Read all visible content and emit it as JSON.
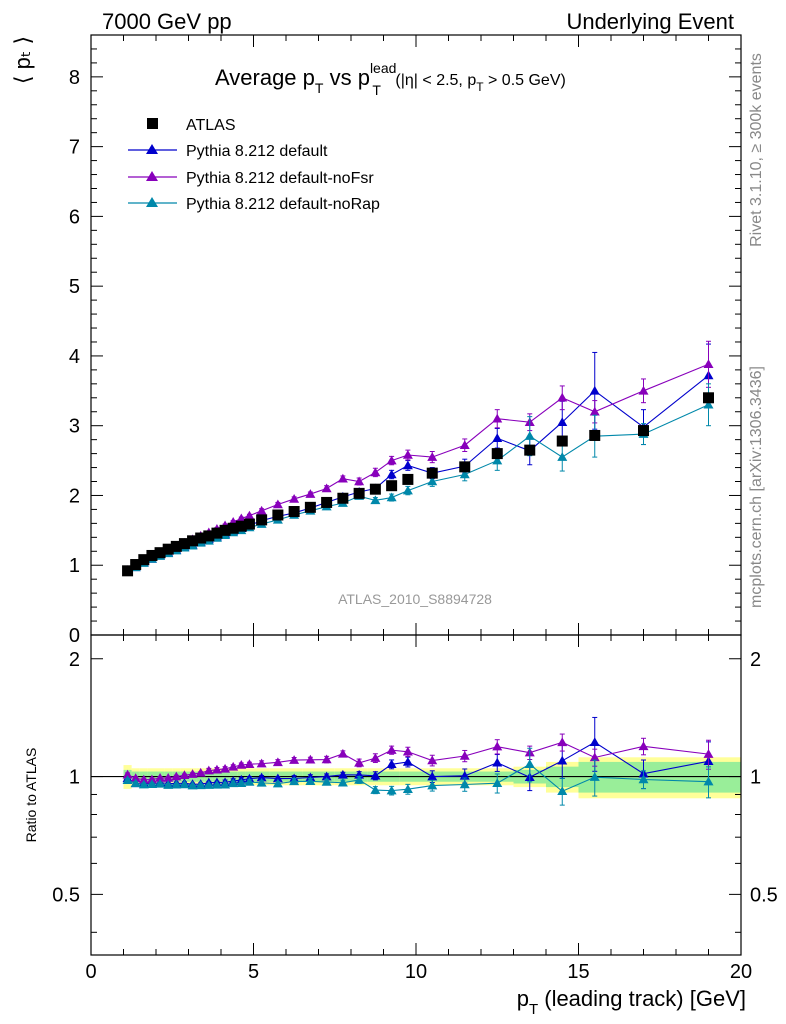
{
  "header": {
    "left": "7000 GeV pp",
    "right": "Underlying Event"
  },
  "side_labels": {
    "rivet": "Rivet 3.1.10, ≥ 300k events",
    "mcplots": "mcplots.cern.ch [arXiv:1306.3436]"
  },
  "chart_data": {
    "type": "scatter",
    "title": {
      "p1": "Average p",
      "sub_t": "T",
      "p2": " vs p",
      "sup_lead": "lead",
      "sub_t2": "T",
      "cuts_a": " (|η| < 2.5, p",
      "cuts_sub": "T",
      "cuts_b": " > 0.5 GeV)"
    },
    "watermark": "ATLAS_2010_S8894728",
    "ylabel_main": "⟨ pₜ ⟩",
    "ylabel_ratio": "Ratio to ATLAS",
    "xlabel": {
      "p": "p",
      "sub": "T",
      "rest": " (leading track) [GeV]"
    },
    "xlim": [
      0,
      20
    ],
    "ylim_main": [
      0,
      8.6
    ],
    "ylim_ratio": [
      0.35,
      2.3
    ],
    "xticks": [
      0,
      5,
      10,
      15,
      20
    ],
    "yticks_main": [
      0,
      1,
      2,
      3,
      4,
      5,
      6,
      7,
      8
    ],
    "yticks_ratio": [
      {
        "value": 0.5,
        "label": "0.5"
      },
      {
        "value": 1,
        "label": "1"
      },
      {
        "value": 2,
        "label": "2"
      }
    ],
    "x": [
      1.125,
      1.375,
      1.625,
      1.875,
      2.125,
      2.375,
      2.625,
      2.875,
      3.125,
      3.375,
      3.625,
      3.875,
      4.125,
      4.375,
      4.625,
      4.875,
      5.25,
      5.75,
      6.25,
      6.75,
      7.25,
      7.75,
      8.25,
      8.75,
      9.25,
      9.75,
      10.5,
      11.5,
      12.5,
      13.5,
      14.5,
      15.5,
      17.0,
      19.0
    ],
    "band_edges": [
      1.0,
      1.25,
      1.5,
      1.75,
      2.0,
      2.25,
      2.5,
      2.75,
      3.0,
      3.25,
      3.5,
      3.75,
      4.0,
      4.25,
      4.5,
      4.75,
      5.0,
      5.5,
      6.0,
      6.5,
      7.0,
      7.5,
      8.0,
      8.5,
      9.0,
      9.5,
      10.0,
      11.0,
      12.0,
      13.0,
      14.0,
      15.0,
      16.0,
      18.0,
      20.0
    ],
    "data": {
      "name": "ATLAS",
      "values": [
        0.92,
        1.01,
        1.08,
        1.14,
        1.18,
        1.23,
        1.27,
        1.31,
        1.35,
        1.39,
        1.42,
        1.46,
        1.5,
        1.53,
        1.56,
        1.59,
        1.65,
        1.72,
        1.77,
        1.83,
        1.9,
        1.96,
        2.03,
        2.09,
        2.14,
        2.23,
        2.32,
        2.41,
        2.6,
        2.65,
        2.78,
        2.86,
        2.93,
        3.4
      ],
      "stat_band": [
        0.04,
        0.03,
        0.03,
        0.03,
        0.03,
        0.03,
        0.03,
        0.03,
        0.03,
        0.03,
        0.03,
        0.03,
        0.03,
        0.03,
        0.03,
        0.03,
        0.03,
        0.03,
        0.03,
        0.03,
        0.03,
        0.03,
        0.03,
        0.03,
        0.03,
        0.03,
        0.03,
        0.03,
        0.03,
        0.04,
        0.06,
        0.09,
        0.09,
        0.09
      ],
      "tot_band": [
        0.07,
        0.05,
        0.05,
        0.05,
        0.05,
        0.05,
        0.05,
        0.05,
        0.05,
        0.05,
        0.05,
        0.05,
        0.05,
        0.05,
        0.05,
        0.05,
        0.05,
        0.05,
        0.05,
        0.05,
        0.05,
        0.05,
        0.05,
        0.05,
        0.05,
        0.05,
        0.05,
        0.05,
        0.05,
        0.06,
        0.09,
        0.12,
        0.12,
        0.12
      ]
    },
    "series": [
      {
        "name": "Pythia 8.212 default",
        "color": "#0000cc",
        "values": [
          0.91,
          0.97,
          1.04,
          1.09,
          1.14,
          1.18,
          1.22,
          1.26,
          1.29,
          1.33,
          1.37,
          1.41,
          1.45,
          1.49,
          1.53,
          1.57,
          1.64,
          1.7,
          1.75,
          1.82,
          1.9,
          1.98,
          2.05,
          2.1,
          2.3,
          2.43,
          2.32,
          2.42,
          2.82,
          2.64,
          3.05,
          3.5,
          2.98,
          3.72
        ],
        "errors": [
          0.01,
          0.01,
          0.01,
          0.01,
          0.01,
          0.01,
          0.01,
          0.01,
          0.01,
          0.01,
          0.01,
          0.01,
          0.02,
          0.02,
          0.02,
          0.02,
          0.02,
          0.02,
          0.03,
          0.03,
          0.03,
          0.03,
          0.04,
          0.05,
          0.06,
          0.07,
          0.08,
          0.1,
          0.14,
          0.2,
          0.3,
          0.55,
          0.25,
          0.45
        ]
      },
      {
        "name": "Pythia 8.212 default-noFsr",
        "color": "#8800bb",
        "values": [
          0.93,
          1.0,
          1.06,
          1.12,
          1.17,
          1.22,
          1.27,
          1.32,
          1.37,
          1.42,
          1.47,
          1.52,
          1.57,
          1.62,
          1.67,
          1.71,
          1.78,
          1.87,
          1.95,
          2.02,
          2.1,
          2.24,
          2.2,
          2.33,
          2.5,
          2.58,
          2.55,
          2.72,
          3.1,
          3.05,
          3.4,
          3.2,
          3.5,
          3.88
        ],
        "errors": [
          0.01,
          0.01,
          0.01,
          0.01,
          0.01,
          0.01,
          0.01,
          0.01,
          0.01,
          0.01,
          0.02,
          0.02,
          0.02,
          0.02,
          0.02,
          0.02,
          0.03,
          0.03,
          0.03,
          0.03,
          0.04,
          0.04,
          0.05,
          0.06,
          0.06,
          0.07,
          0.08,
          0.09,
          0.13,
          0.12,
          0.17,
          0.16,
          0.17,
          0.33
        ]
      },
      {
        "name": "Pythia 8.212 default-noRap",
        "color": "#0088aa",
        "values": [
          0.9,
          0.97,
          1.03,
          1.09,
          1.13,
          1.17,
          1.21,
          1.25,
          1.28,
          1.32,
          1.35,
          1.39,
          1.43,
          1.47,
          1.5,
          1.54,
          1.59,
          1.65,
          1.72,
          1.78,
          1.84,
          1.89,
          1.99,
          1.93,
          1.97,
          2.07,
          2.2,
          2.3,
          2.5,
          2.85,
          2.55,
          2.85,
          2.88,
          3.3
        ],
        "errors": [
          0.01,
          0.01,
          0.01,
          0.01,
          0.01,
          0.01,
          0.01,
          0.01,
          0.01,
          0.01,
          0.01,
          0.01,
          0.02,
          0.02,
          0.02,
          0.02,
          0.02,
          0.02,
          0.03,
          0.03,
          0.03,
          0.03,
          0.04,
          0.04,
          0.05,
          0.06,
          0.07,
          0.09,
          0.14,
          0.28,
          0.2,
          0.3,
          0.15,
          0.3
        ]
      }
    ]
  }
}
